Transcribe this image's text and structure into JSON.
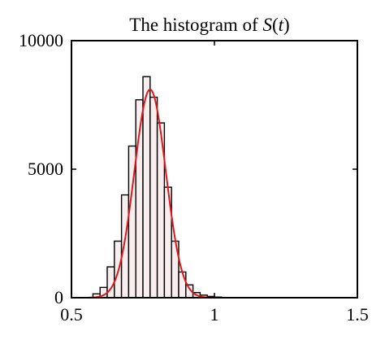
{
  "chart_data": {
    "type": "bar",
    "title_prefix": "The histogram of ",
    "title_func": "S",
    "title_open": "(",
    "title_var": "t",
    "title_close": ")",
    "xlim": [
      0.5,
      1.5
    ],
    "ylim": [
      0,
      10000
    ],
    "x_ticks": [
      0.5,
      1,
      1.5
    ],
    "x_tick_labels": [
      "0.5",
      "1",
      "1.5"
    ],
    "y_ticks": [
      0,
      5000,
      10000
    ],
    "y_tick_labels": [
      "0",
      "5000",
      "10000"
    ],
    "bin_width": 0.025,
    "bins": [
      {
        "x0": 0.55,
        "value": 0
      },
      {
        "x0": 0.575,
        "value": 150
      },
      {
        "x0": 0.6,
        "value": 400
      },
      {
        "x0": 0.625,
        "value": 1200
      },
      {
        "x0": 0.65,
        "value": 2200
      },
      {
        "x0": 0.675,
        "value": 4000
      },
      {
        "x0": 0.7,
        "value": 5900
      },
      {
        "x0": 0.725,
        "value": 7700
      },
      {
        "x0": 0.75,
        "value": 8600
      },
      {
        "x0": 0.775,
        "value": 7800
      },
      {
        "x0": 0.8,
        "value": 6800
      },
      {
        "x0": 0.825,
        "value": 4300
      },
      {
        "x0": 0.85,
        "value": 2200
      },
      {
        "x0": 0.875,
        "value": 1000
      },
      {
        "x0": 0.9,
        "value": 500
      },
      {
        "x0": 0.925,
        "value": 200
      },
      {
        "x0": 0.95,
        "value": 100
      },
      {
        "x0": 0.975,
        "value": 50
      },
      {
        "x0": 1.0,
        "value": 25
      }
    ],
    "fit_curve": {
      "mean": 0.775,
      "sd": 0.055,
      "peak": 8100,
      "x_range": [
        0.56,
        1.0
      ]
    },
    "colors": {
      "bar_fill": "#f8eeee",
      "bar_stroke": "#000000",
      "curve": "#e0161b",
      "axis": "#000000"
    },
    "grid": false
  }
}
